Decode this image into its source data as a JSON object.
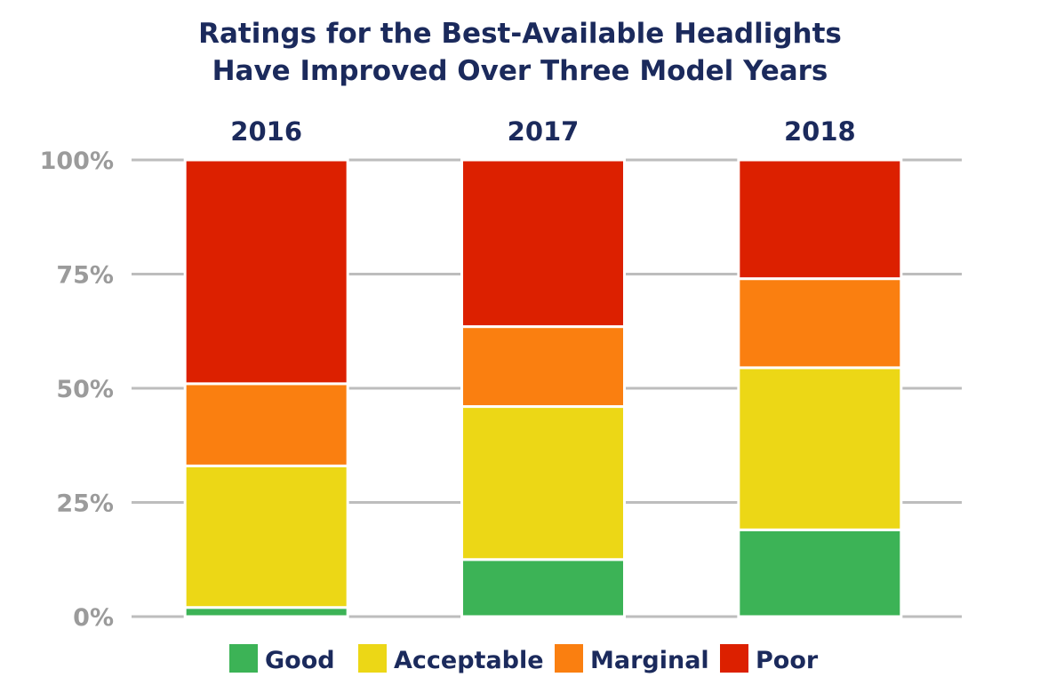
{
  "chart_data": {
    "type": "bar",
    "stacked": true,
    "title": [
      "Ratings for the Best-Available Headlights",
      "Have Improved Over Three Model Years"
    ],
    "categories": [
      "2016",
      "2017",
      "2018"
    ],
    "ylim": [
      0,
      100
    ],
    "yticks": [
      "0%",
      "25%",
      "50%",
      "75%",
      "100%"
    ],
    "ytick_values": [
      0,
      25,
      50,
      75,
      100
    ],
    "grid": true,
    "legend_position": "bottom",
    "series": [
      {
        "name": "Good",
        "color": "#3cb356",
        "values": [
          2,
          12.5,
          19
        ]
      },
      {
        "name": "Acceptable",
        "color": "#ecd716",
        "values": [
          31,
          33.5,
          35.5
        ]
      },
      {
        "name": "Marginal",
        "color": "#fa7f10",
        "values": [
          18,
          17.5,
          19.5
        ]
      },
      {
        "name": "Poor",
        "color": "#dc2000",
        "values": [
          49,
          36.5,
          26
        ]
      }
    ]
  }
}
